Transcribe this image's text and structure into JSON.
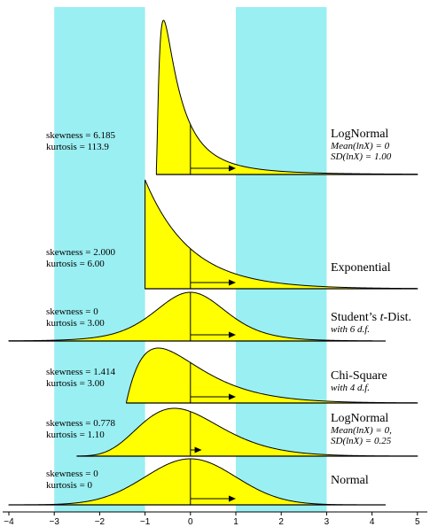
{
  "chart_data": {
    "type": "area",
    "xlim": [
      -4,
      5
    ],
    "x_ticks": [
      -4,
      -3,
      -2,
      -1,
      0,
      1,
      2,
      3,
      4,
      5
    ],
    "x_tick_labels": [
      "−4",
      "−3",
      "−2",
      "−1",
      "0",
      "1",
      "2",
      "3",
      "4",
      "5"
    ],
    "shaded_bands": [
      [
        -3,
        -1
      ],
      [
        1,
        3
      ]
    ],
    "colors": {
      "band": "#9aeff2",
      "fill": "#ffff00",
      "stroke": "#000000"
    },
    "panels": [
      {
        "name": "LogNormal",
        "subtitle_lines": [
          "Mean(lnX) = 0",
          "SD(lnX) = 1.00"
        ],
        "skewness_label": "skewness = 6.185",
        "kurtosis_label": "kurtosis = 113.9",
        "density": "lognormal",
        "mean": 0,
        "sd": 1,
        "domain": [
          -0.75,
          5
        ],
        "baseline_from": -0.75,
        "baseline_to": 5
      },
      {
        "name": "Exponential",
        "subtitle_lines": [],
        "skewness_label": "skewness = 2.000",
        "kurtosis_label": "kurtosis = 6.00",
        "density": "exponential",
        "mean": 0,
        "sd": 1,
        "domain": [
          -1,
          5
        ],
        "baseline_from": -1,
        "baseline_to": 5
      },
      {
        "name": "Student’s t-Dist.",
        "name_parts": [
          "Student’s ",
          "t",
          "-Dist."
        ],
        "subtitle_lines": [
          "with 6 d.f."
        ],
        "skewness_label": "skewness = 0",
        "kurtosis_label": "kurtosis = 3.00",
        "density": "t",
        "df": 6,
        "mean": 0,
        "sd": 1,
        "domain": [
          -4,
          4
        ],
        "baseline_from": -4,
        "baseline_to": 4.3
      },
      {
        "name": "Chi-Square",
        "subtitle_lines": [
          "with 4 d.f."
        ],
        "skewness_label": "skewness = 1.414",
        "kurtosis_label": "kurtosis = 3.00",
        "density": "chisquare",
        "df": 4,
        "mean": 0,
        "sd": 1,
        "domain": [
          -1.41,
          5
        ],
        "baseline_from": -1.41,
        "baseline_to": 5
      },
      {
        "name": "LogNormal",
        "subtitle_lines": [
          "Mean(lnX) = 0,",
          "SD(lnX) = 0.25"
        ],
        "skewness_label": "skewness = 0.778",
        "kurtosis_label": "kurtosis = 1.10",
        "density": "lognormal",
        "mean": 0,
        "sd": 0.25,
        "domain": [
          -2.5,
          5
        ],
        "baseline_from": -2.5,
        "baseline_to": 5
      },
      {
        "name": "Normal",
        "subtitle_lines": [],
        "skewness_label": "skewness = 0",
        "kurtosis_label": "kurtosis = 0",
        "density": "normal",
        "mean": 0,
        "sd": 1,
        "domain": [
          -4,
          4
        ],
        "baseline_from": -4,
        "baseline_to": 4.3
      }
    ]
  }
}
